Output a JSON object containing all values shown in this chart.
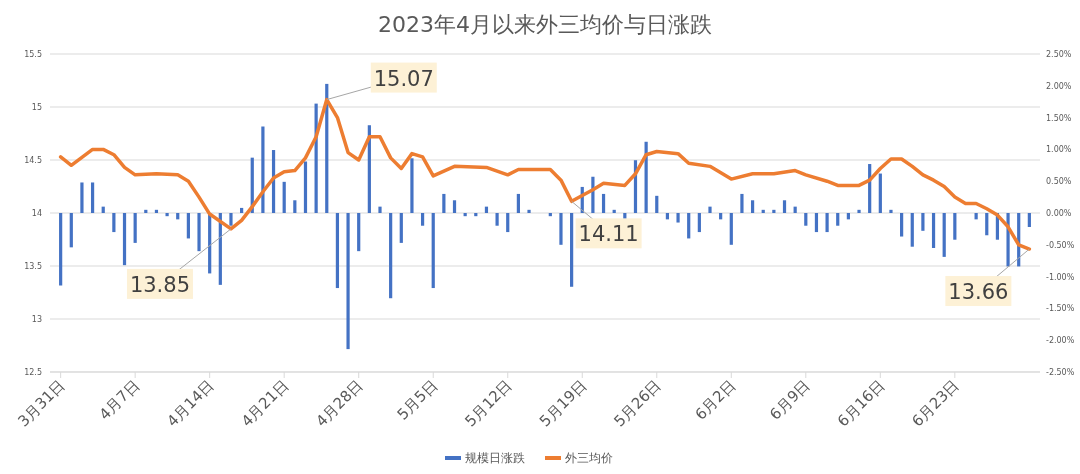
{
  "chart_data": {
    "type": "bar",
    "title": "2023年4月以来外三均价与日涨跌",
    "xlim": [
      "--03-30",
      "--07-01"
    ],
    "xticks": [
      {
        "value": "--03-31",
        "label": "3月31日"
      },
      {
        "value": "--04-07",
        "label": "4月7日"
      },
      {
        "value": "--04-14",
        "label": "4月14日"
      },
      {
        "value": "--04-21",
        "label": "4月21日"
      },
      {
        "value": "--04-28",
        "label": "4月28日"
      },
      {
        "value": "--05-05",
        "label": "5月5日"
      },
      {
        "value": "--05-12",
        "label": "5月12日"
      },
      {
        "value": "--05-19",
        "label": "5月19日"
      },
      {
        "value": "--05-26",
        "label": "5月26日"
      },
      {
        "value": "--06-02",
        "label": "6月2日"
      },
      {
        "value": "--06-09",
        "label": "6月9日"
      },
      {
        "value": "--06-16",
        "label": "6月16日"
      },
      {
        "value": "--06-23",
        "label": "6月23日"
      }
    ],
    "ylim": [
      12.5,
      15.5
    ],
    "yticks": [
      12.5,
      13,
      13.5,
      14,
      14.5,
      15,
      15.5
    ],
    "y2lim": [
      -2.5,
      2.5
    ],
    "y2ticks": [
      {
        "value": -2.5,
        "label": "-2.50%"
      },
      {
        "value": -2,
        "label": "-2.00%"
      },
      {
        "value": -1.5,
        "label": "-1.50%"
      },
      {
        "value": -1,
        "label": "-1.00%"
      },
      {
        "value": -0.5,
        "label": "-0.50%"
      },
      {
        "value": 0,
        "label": "0.00%"
      },
      {
        "value": 0.5,
        "label": "0.50%"
      },
      {
        "value": 1,
        "label": "1.00%"
      },
      {
        "value": 1.5,
        "label": "1.50%"
      },
      {
        "value": 2,
        "label": "2.00%"
      },
      {
        "value": 2.5,
        "label": "2.50%"
      }
    ],
    "grid": "y",
    "legend": "bottom",
    "marker": "none",
    "line_style": "solid",
    "series": [
      {
        "name": "规模日涨跌",
        "axis": "y2",
        "color": "#4472c4",
        "x": [
          "--03-31",
          "--04-01",
          "--04-02",
          "--04-03",
          "--04-04",
          "--04-05",
          "--04-06",
          "--04-07",
          "--04-08",
          "--04-09",
          "--04-10",
          "--04-11",
          "--04-12",
          "--04-13",
          "--04-14",
          "--04-15",
          "--04-16",
          "--04-17",
          "--04-18",
          "--04-19",
          "--04-20",
          "--04-21",
          "--04-22",
          "--04-23",
          "--04-24",
          "--04-25",
          "--04-26",
          "--04-27",
          "--04-28",
          "--04-29",
          "--04-30",
          "--05-01",
          "--05-02",
          "--05-03",
          "--05-04",
          "--05-05",
          "--05-06",
          "--05-07",
          "--05-08",
          "--05-09",
          "--05-10",
          "--05-11",
          "--05-12",
          "--05-13",
          "--05-14",
          "--05-15",
          "--05-16",
          "--05-17",
          "--05-18",
          "--05-19",
          "--05-20",
          "--05-21",
          "--05-22",
          "--05-23",
          "--05-24",
          "--05-25",
          "--05-26",
          "--05-27",
          "--05-28",
          "--05-29",
          "--05-30",
          "--05-31",
          "--06-01",
          "--06-02",
          "--06-03",
          "--06-04",
          "--06-05",
          "--06-06",
          "--06-07",
          "--06-08",
          "--06-09",
          "--06-10",
          "--06-11",
          "--06-12",
          "--06-13",
          "--06-14",
          "--06-15",
          "--06-16",
          "--06-17",
          "--06-18",
          "--06-19",
          "--06-20",
          "--06-21",
          "--06-22",
          "--06-23",
          "--06-24",
          "--06-25",
          "--06-26",
          "--06-27",
          "--06-28",
          "--06-29",
          "--06-30"
        ],
        "values": [
          -1.14,
          -0.54,
          0.48,
          0.48,
          0.1,
          -0.3,
          -0.82,
          -0.47,
          0.05,
          0.05,
          -0.05,
          -0.1,
          -0.4,
          -0.6,
          -0.95,
          -1.13,
          -0.2,
          0.08,
          0.87,
          1.36,
          0.99,
          0.49,
          0.2,
          0.81,
          1.72,
          2.03,
          -1.18,
          -2.14,
          -0.6,
          1.38,
          0.1,
          -1.34,
          -0.47,
          0.86,
          -0.2,
          -1.18,
          0.3,
          0.2,
          -0.05,
          -0.05,
          0.1,
          -0.2,
          -0.3,
          0.3,
          0.05,
          0.0,
          -0.05,
          -0.5,
          -1.16,
          0.41,
          0.57,
          0.3,
          0.05,
          -0.1,
          0.83,
          1.12,
          0.27,
          -0.1,
          -0.15,
          -0.4,
          -0.3,
          0.1,
          -0.1,
          -0.5,
          0.3,
          0.2,
          0.05,
          0.05,
          0.2,
          0.1,
          -0.2,
          -0.3,
          -0.3,
          -0.2,
          -0.1,
          0.05,
          0.77,
          0.62,
          0.05,
          -0.37,
          -0.53,
          -0.28,
          -0.55,
          -0.69,
          -0.42,
          0.0,
          -0.1,
          -0.35,
          -0.42,
          -0.84,
          -0.84,
          -0.22
        ]
      },
      {
        "name": "外三均价",
        "type": "line",
        "color": "#ed7d31",
        "x": [
          "--03-31",
          "--04-01",
          "--04-03",
          "--04-04",
          "--04-05",
          "--04-06",
          "--04-07",
          "--04-09",
          "--04-11",
          "--04-12",
          "--04-13",
          "--04-14",
          "--04-16",
          "--04-17",
          "--04-18",
          "--04-19",
          "--04-20",
          "--04-21",
          "--04-22",
          "--04-23",
          "--04-24",
          "--04-25",
          "--04-26",
          "--04-27",
          "--04-28",
          "--04-29",
          "--04-30",
          "--05-01",
          "--05-02",
          "--05-03",
          "--05-04",
          "--05-05",
          "--05-07",
          "--05-10",
          "--05-12",
          "--05-13",
          "--05-16",
          "--05-17",
          "--05-18",
          "--05-20",
          "--05-21",
          "--05-23",
          "--05-24",
          "--05-25",
          "--05-26",
          "--05-28",
          "--05-29",
          "--05-31",
          "--06-02",
          "--06-04",
          "--06-06",
          "--06-08",
          "--06-09",
          "--06-11",
          "--06-12",
          "--06-14",
          "--06-15",
          "--06-16",
          "--06-17",
          "--06-18",
          "--06-19",
          "--06-20",
          "--06-21",
          "--06-22",
          "--06-23",
          "--06-24",
          "--06-25",
          "--06-26",
          "--06-27",
          "--06-28",
          "--06-29",
          "--06-30"
        ],
        "values": [
          14.53,
          14.45,
          14.6,
          14.6,
          14.55,
          14.43,
          14.36,
          14.37,
          14.36,
          14.3,
          14.15,
          13.99,
          13.85,
          13.93,
          14.06,
          14.2,
          14.33,
          14.39,
          14.4,
          14.52,
          14.72,
          15.07,
          14.9,
          14.57,
          14.5,
          14.72,
          14.72,
          14.52,
          14.42,
          14.56,
          14.53,
          14.35,
          14.44,
          14.43,
          14.36,
          14.41,
          14.41,
          14.31,
          14.11,
          14.22,
          14.28,
          14.26,
          14.37,
          14.55,
          14.58,
          14.56,
          14.47,
          14.44,
          14.32,
          14.37,
          14.37,
          14.4,
          14.36,
          14.3,
          14.26,
          14.26,
          14.31,
          14.42,
          14.51,
          14.51,
          14.44,
          14.36,
          14.31,
          14.25,
          14.15,
          14.09,
          14.09,
          14.04,
          13.98,
          13.87,
          13.7,
          13.66
        ]
      }
    ],
    "annotations": [
      {
        "text": "15.07",
        "x": "--04-25",
        "y": 15.07
      },
      {
        "text": "13.85",
        "x": "--04-16",
        "y": 13.85
      },
      {
        "text": "14.11",
        "x": "--05-18",
        "y": 14.11
      },
      {
        "text": "13.66",
        "x": "--06-30",
        "y": 13.66
      }
    ]
  }
}
